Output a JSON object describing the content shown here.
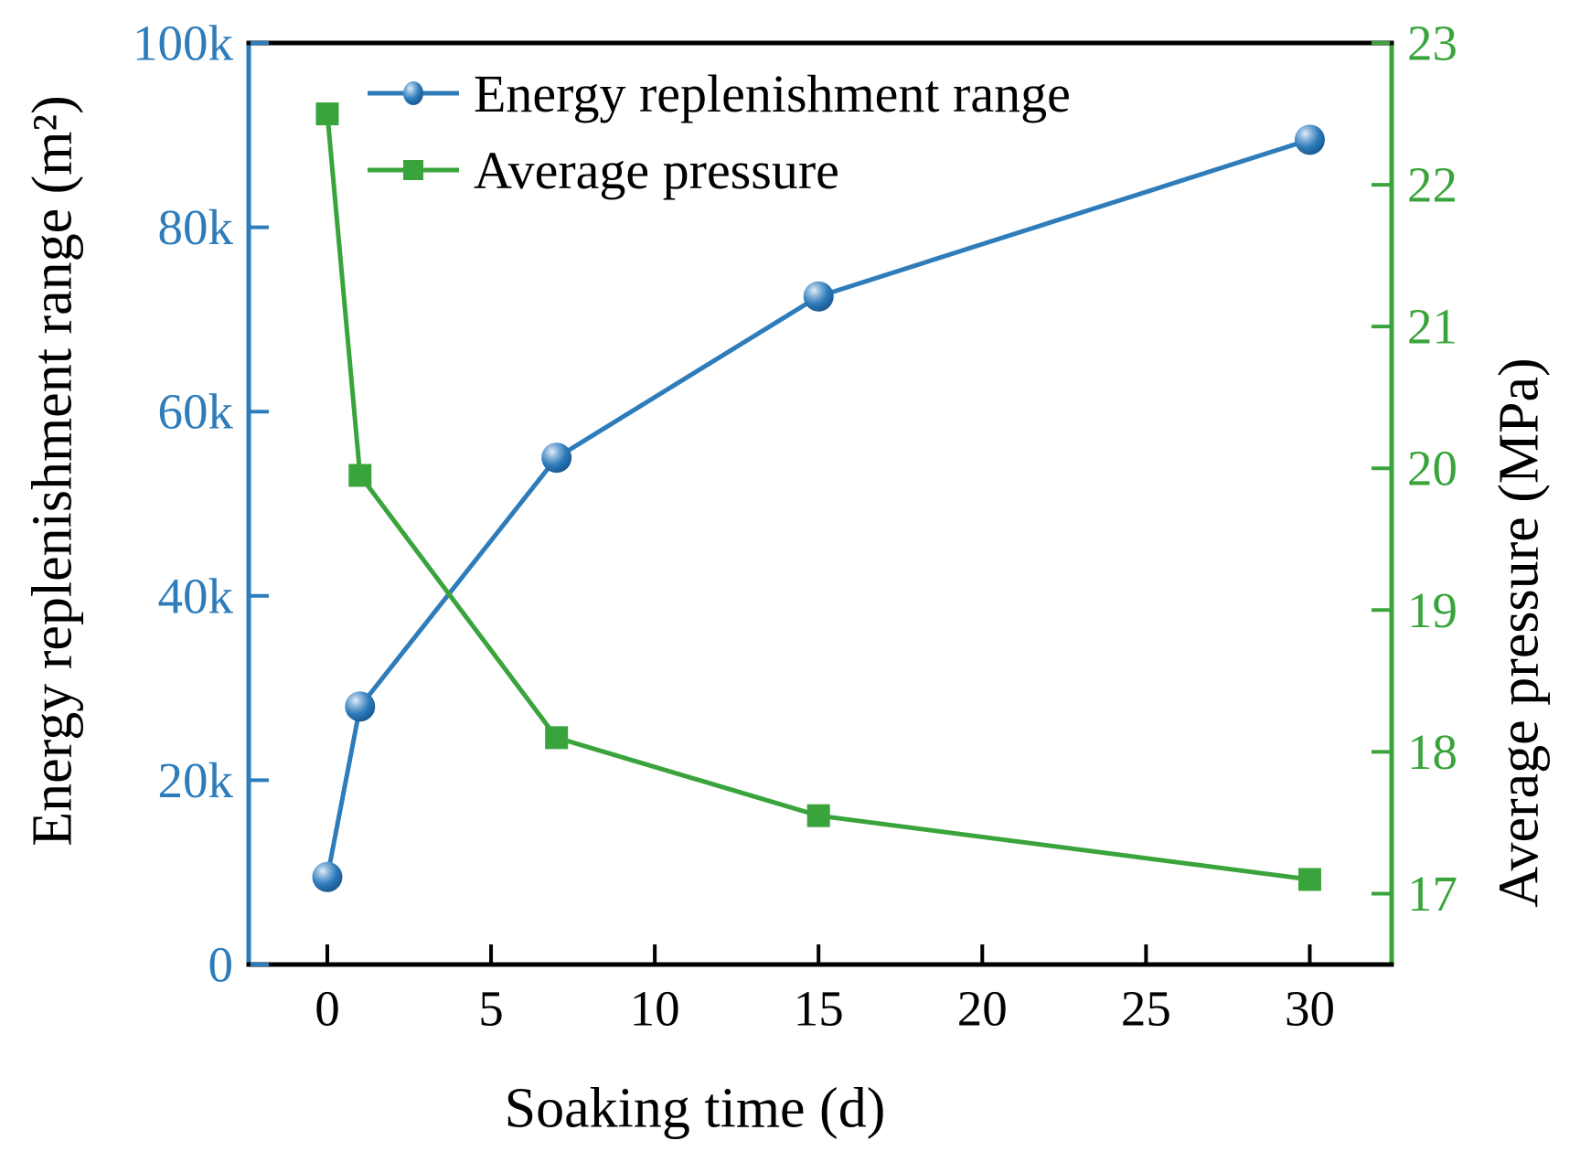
{
  "figure": {
    "background": "#ffffff"
  },
  "colors": {
    "energy_blue": "#2e7cba",
    "pressure_green": "#3aa43c",
    "frame_black": "#000000"
  },
  "chart_data": {
    "type": "line",
    "title": "",
    "x_label": "Soaking time (d)",
    "y_left_label": "Energy replenishment range (m²)",
    "y_right_label": "Average pressure (MPa)",
    "x": [
      0,
      1,
      7,
      15,
      30
    ],
    "series": [
      {
        "name": "Energy replenishment range",
        "axis": "left",
        "marker": "sphere",
        "color": "#2e7cba",
        "values": [
          9500,
          28000,
          55000,
          72500,
          89500
        ]
      },
      {
        "name": "Average pressure",
        "axis": "right",
        "marker": "square",
        "color": "#3aa43c",
        "values": [
          22.5,
          19.95,
          18.1,
          17.55,
          17.1
        ]
      }
    ],
    "x_ticks": [
      0,
      5,
      10,
      15,
      20,
      25,
      30
    ],
    "y_left_tick_values": [
      0,
      20000,
      40000,
      60000,
      80000,
      100000
    ],
    "y_left_tick_labels": [
      "0",
      "20k",
      "40k",
      "60k",
      "80k",
      "100k"
    ],
    "y_right_ticks": [
      17,
      18,
      19,
      20,
      21,
      22,
      23
    ],
    "x_range": [
      -2.4,
      32.5
    ],
    "y_left_range": [
      0,
      100000
    ],
    "y_right_range": [
      16.5,
      23
    ],
    "grid": false,
    "legend_position": "upper-left-inside",
    "tick_direction": "in"
  }
}
